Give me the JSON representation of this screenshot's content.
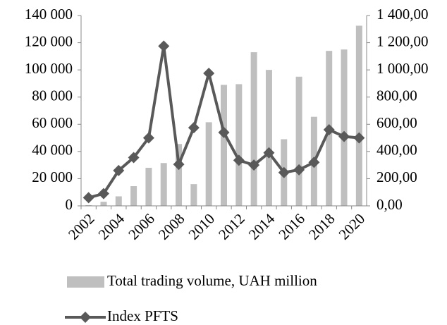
{
  "chart_data": {
    "type": "combo",
    "categories": [
      "2002",
      null,
      "2004",
      null,
      "2006",
      null,
      "2008",
      null,
      "2010",
      null,
      "2012",
      null,
      "2014",
      null,
      "2016",
      null,
      "2018",
      null,
      "2020"
    ],
    "series": [
      {
        "name": "Total trading volume, UAH million",
        "type": "bar",
        "color": "#bfbfbf",
        "values": [
          500,
          3000,
          7000,
          14500,
          28000,
          31500,
          45500,
          16000,
          61500,
          89000,
          89500,
          113000,
          100000,
          49000,
          95000,
          65500,
          114000,
          115000,
          132500
        ]
      },
      {
        "name": "Index PFTS",
        "type": "line",
        "axis": "y2",
        "color": "#595959",
        "values": [
          60,
          90,
          260,
          355,
          500,
          1175,
          305,
          575,
          975,
          540,
          335,
          300,
          390,
          245,
          265,
          320,
          560,
          510,
          500
        ]
      }
    ],
    "ylim": [
      0,
      140000
    ],
    "yticks": [
      0,
      {
        "value": 20000,
        "label": "20 000"
      },
      {
        "value": 40000,
        "label": "40 000"
      },
      {
        "value": 60000,
        "label": "60 000"
      },
      {
        "value": 80000,
        "label": "80 000"
      },
      {
        "value": 100000,
        "label": "100 000"
      },
      {
        "value": 120000,
        "label": "120 000"
      },
      {
        "value": 140000,
        "label": "140 000"
      }
    ],
    "y2lim": [
      0,
      1400
    ],
    "y2ticks": [
      {
        "value": 0,
        "label": "0,00"
      },
      {
        "value": 200,
        "label": "200,00"
      },
      {
        "value": 400,
        "label": "400,00"
      },
      {
        "value": 600,
        "label": "600,00"
      },
      {
        "value": 800,
        "label": "800,00"
      },
      {
        "value": 1000,
        "label": "1 000,00"
      },
      {
        "value": 1200,
        "label": "1 200,00"
      },
      {
        "value": 1400,
        "label": "1 400,00"
      }
    ],
    "legend": "bottom",
    "grid": false
  }
}
